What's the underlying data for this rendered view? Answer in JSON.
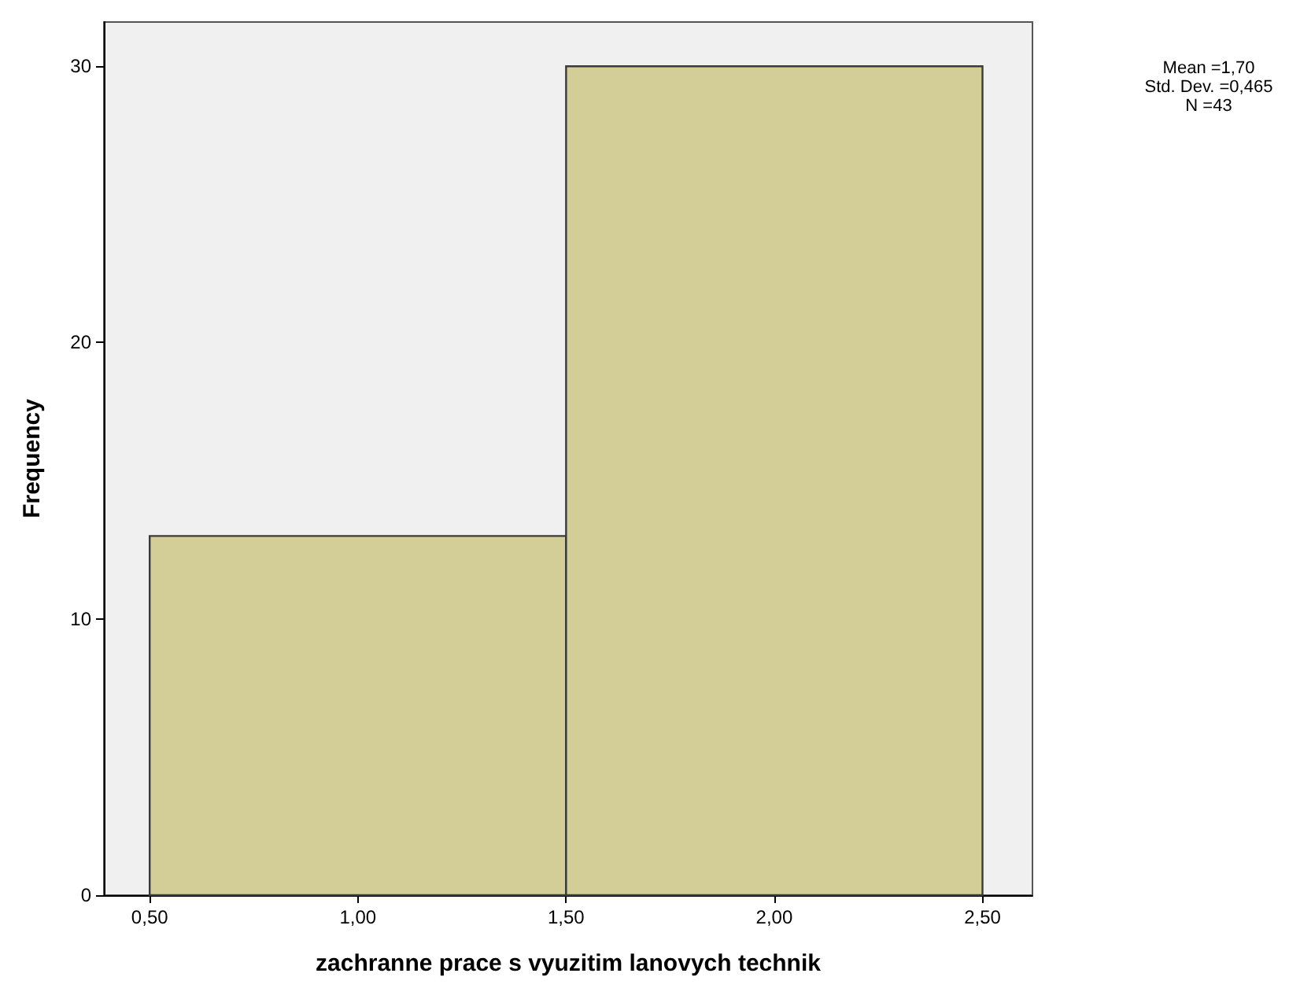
{
  "chart_data": {
    "type": "histogram",
    "xlabel": "zachranne prace s vyuzitim lanovych technik",
    "ylabel": "Frequency",
    "bins": [
      0.5,
      1.5,
      2.5
    ],
    "values": [
      13,
      30
    ],
    "color": "#d3ce97",
    "xlim": [
      0.39,
      2.62
    ],
    "xticks": [
      {
        "value": 0.5,
        "label": "0,50"
      },
      {
        "value": 1,
        "label": "1,00"
      },
      {
        "value": 1.5,
        "label": "1,50"
      },
      {
        "value": 2,
        "label": "2,00"
      },
      {
        "value": 2.5,
        "label": "2,50"
      }
    ],
    "ylim": [
      0,
      31.6
    ],
    "yticks": [
      0,
      10,
      20,
      30
    ],
    "grid": false,
    "annotations": [
      "Mean =1,70",
      "Std. Dev. =0,465",
      "N =43"
    ]
  }
}
